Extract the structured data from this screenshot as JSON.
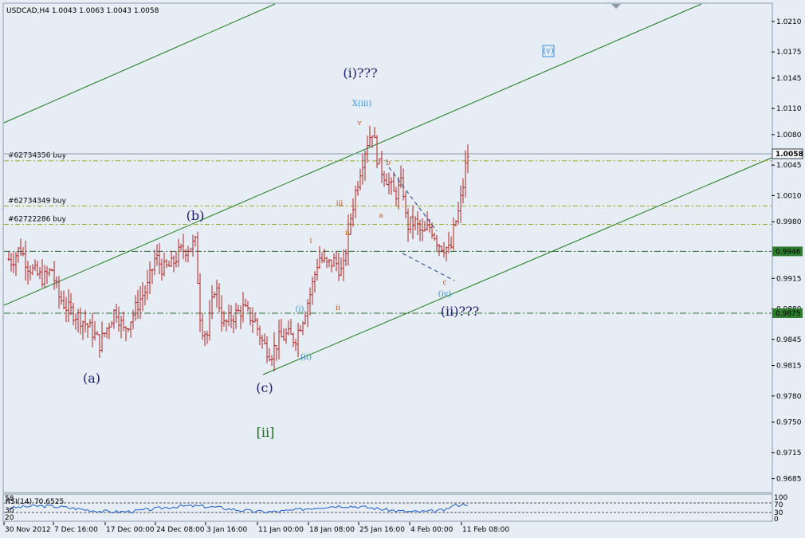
{
  "window_title": "USDCAD,H4  1.0043 1.0063 1.0043 1.0058",
  "colors": {
    "background": "#e6edf4",
    "bar_color": "#b22222",
    "channel_line": "#1e7b1e",
    "order_line": "#9aa832",
    "level_line": "#2e6b2e",
    "price_line": "#8a9aa8",
    "wave_main": "#1a1a6e",
    "wave_minor": "#3a8fd8",
    "wave_sub": "#c0561a",
    "wave_green": "#1f6b1f"
  },
  "chart_data": {
    "type": "candlestick",
    "symbol": "USDCAD",
    "timeframe": "H4",
    "header": {
      "open": "1.0043",
      "high": "1.0063",
      "low": "1.0043",
      "close": "1.0058"
    },
    "y_ticks": [
      "1.0210",
      "1.0175",
      "1.0145",
      "1.0110",
      "1.0080",
      "1.0045",
      "1.0010",
      "0.9980",
      "0.9915",
      "0.9880",
      "0.9845",
      "0.9815",
      "0.9780",
      "0.9750",
      "0.9715",
      "0.9685"
    ],
    "y_range": [
      0.967,
      1.023
    ],
    "x_labels": [
      "30 Nov 2012",
      "7 Dec 16:00",
      "17 Dec 00:00",
      "24 Dec 08:00",
      "3 Jan 16:00",
      "11 Jan 00:00",
      "18 Jan 08:00",
      "25 Jan 16:00",
      "4 Feb 00:00",
      "11 Feb 08:00"
    ],
    "current_price": "1.0058",
    "price_labels": [
      "0.9946",
      "0.9875"
    ],
    "orders": [
      {
        "label": "#62734356 buy",
        "price": 1.005
      },
      {
        "label": "#62734349 buy",
        "price": 0.9998
      },
      {
        "label": "#62722286 buy",
        "price": 0.9977
      }
    ],
    "levels": [
      0.9946,
      0.9875
    ],
    "wave_labels_main": [
      "(a)",
      "(b)",
      "(c)",
      "(i)???",
      "(ii)???"
    ],
    "wave_labels_green": [
      "[ii]"
    ],
    "wave_labels_minor": [
      "(i)",
      "(ii)",
      "X(iii)",
      "(iv)",
      "(v)"
    ],
    "wave_labels_sub": [
      "i",
      "ii",
      "iii",
      "iv",
      "v",
      "a",
      "b",
      "c"
    ],
    "rsi": {
      "label": "RSI(14) 70.6525",
      "value": 70.6525,
      "levels": [
        "100",
        "70",
        "30",
        "0"
      ],
      "left_ticks": [
        "58",
        "30",
        "20"
      ]
    },
    "price_path": [
      [
        0,
        0.994
      ],
      [
        10,
        0.9935
      ],
      [
        20,
        0.995
      ],
      [
        30,
        0.993
      ],
      [
        40,
        0.992
      ],
      [
        50,
        0.9915
      ],
      [
        60,
        0.9925
      ],
      [
        68,
        0.9895
      ],
      [
        80,
        0.988
      ],
      [
        95,
        0.987
      ],
      [
        110,
        0.9855
      ],
      [
        120,
        0.984
      ],
      [
        130,
        0.986
      ],
      [
        140,
        0.988
      ],
      [
        150,
        0.9855
      ],
      [
        160,
        0.987
      ],
      [
        170,
        0.989
      ],
      [
        180,
        0.9905
      ],
      [
        190,
        0.994
      ],
      [
        200,
        0.9925
      ],
      [
        210,
        0.993
      ],
      [
        220,
        0.9945
      ],
      [
        230,
        0.995
      ],
      [
        240,
        0.9955
      ],
      [
        247,
        0.986
      ],
      [
        255,
        0.985
      ],
      [
        265,
        0.991
      ],
      [
        275,
        0.986
      ],
      [
        285,
        0.987
      ],
      [
        300,
        0.988
      ],
      [
        315,
        0.9865
      ],
      [
        325,
        0.984
      ],
      [
        335,
        0.9828
      ],
      [
        345,
        0.9845
      ],
      [
        355,
        0.985
      ],
      [
        365,
        0.9845
      ],
      [
        375,
        0.987
      ],
      [
        385,
        0.99
      ],
      [
        395,
        0.994
      ],
      [
        405,
        0.993
      ],
      [
        415,
        0.9935
      ],
      [
        425,
        0.992
      ],
      [
        432,
        0.997
      ],
      [
        440,
        1.001
      ],
      [
        447,
        1.004
      ],
      [
        455,
        1.007
      ],
      [
        462,
        1.0085
      ],
      [
        470,
        1.0045
      ],
      [
        480,
        1.003
      ],
      [
        490,
        1.001
      ],
      [
        500,
        1.0025
      ],
      [
        505,
        0.9975
      ],
      [
        515,
        0.998
      ],
      [
        525,
        0.9965
      ],
      [
        535,
        0.9975
      ],
      [
        545,
        0.9955
      ],
      [
        555,
        0.995
      ],
      [
        560,
        0.9945
      ],
      [
        565,
        0.9975
      ],
      [
        570,
        0.999
      ],
      [
        575,
        1.0015
      ],
      [
        580,
        1.005
      ],
      [
        583,
        1.006
      ]
    ]
  }
}
